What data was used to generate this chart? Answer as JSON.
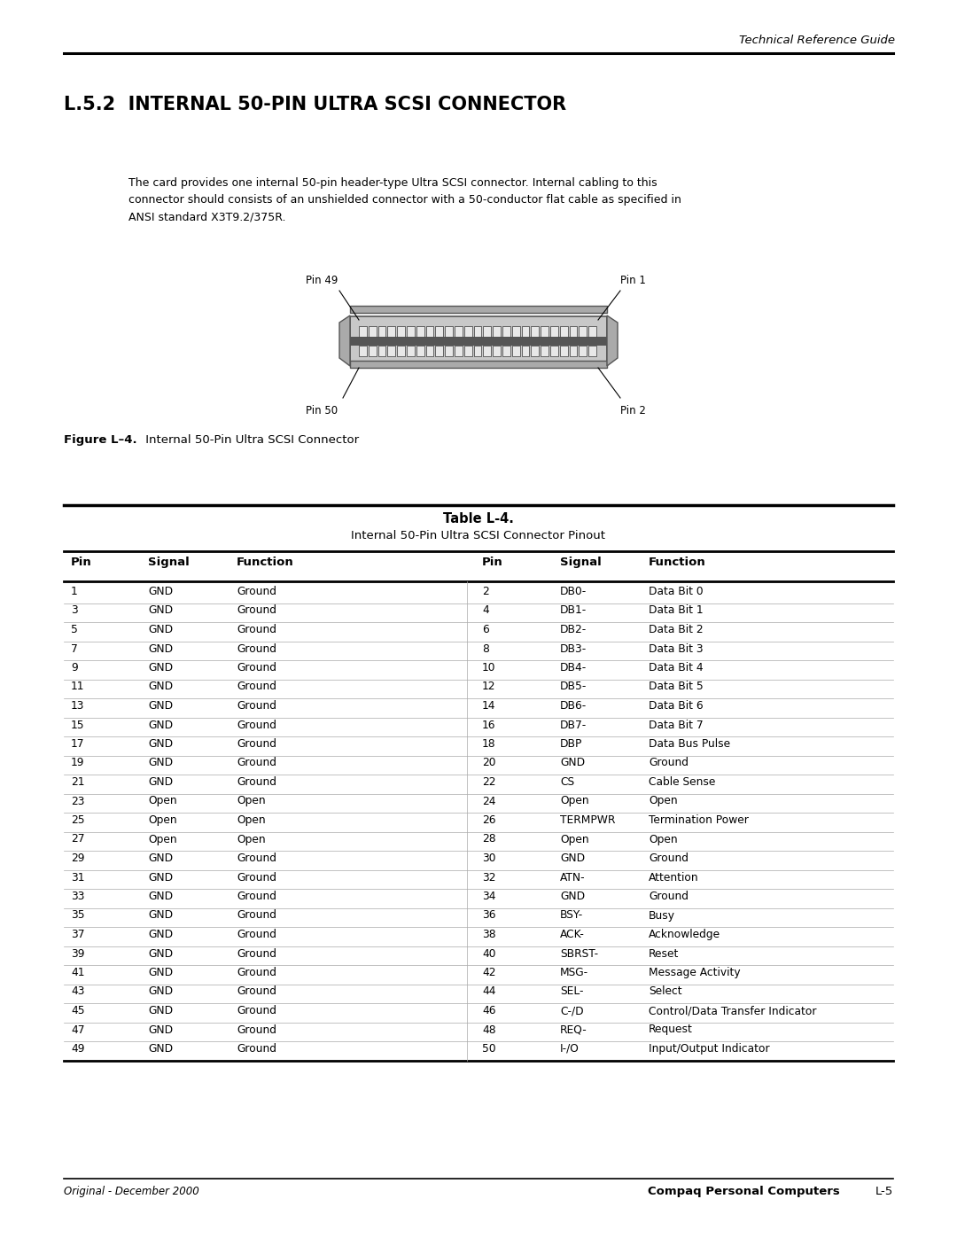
{
  "header_right": "Technical Reference Guide",
  "section_title": "L.5.2  INTERNAL 50-PIN ULTRA SCSI CONNECTOR",
  "body_text_line1": "The card provides one internal 50-pin header-type Ultra SCSI connector. Internal cabling to this",
  "body_text_line2": "connector should consists of an unshielded connector with a 50-conductor flat cable as specified in",
  "body_text_line3": "ANSI standard X3T9.2/375R.",
  "figure_caption_bold": "Figure L–4.",
  "figure_caption_normal": " Internal 50-Pin Ultra SCSI Connector",
  "table_title_bold": "Table L-4.",
  "table_title_normal": "Internal 50-Pin Ultra SCSI Connector Pinout",
  "col_headers": [
    "Pin",
    "Signal",
    "Function",
    "Pin",
    "Signal",
    "Function"
  ],
  "table_rows": [
    [
      "1",
      "GND",
      "Ground",
      "2",
      "DB0-",
      "Data Bit 0"
    ],
    [
      "3",
      "GND",
      "Ground",
      "4",
      "DB1-",
      "Data Bit 1"
    ],
    [
      "5",
      "GND",
      "Ground",
      "6",
      "DB2-",
      "Data Bit 2"
    ],
    [
      "7",
      "GND",
      "Ground",
      "8",
      "DB3-",
      "Data Bit 3"
    ],
    [
      "9",
      "GND",
      "Ground",
      "10",
      "DB4-",
      "Data Bit 4"
    ],
    [
      "11",
      "GND",
      "Ground",
      "12",
      "DB5-",
      "Data Bit 5"
    ],
    [
      "13",
      "GND",
      "Ground",
      "14",
      "DB6-",
      "Data Bit 6"
    ],
    [
      "15",
      "GND",
      "Ground",
      "16",
      "DB7-",
      "Data Bit 7"
    ],
    [
      "17",
      "GND",
      "Ground",
      "18",
      "DBP",
      "Data Bus Pulse"
    ],
    [
      "19",
      "GND",
      "Ground",
      "20",
      "GND",
      "Ground"
    ],
    [
      "21",
      "GND",
      "Ground",
      "22",
      "CS",
      "Cable Sense"
    ],
    [
      "23",
      "Open",
      "Open",
      "24",
      "Open",
      "Open"
    ],
    [
      "25",
      "Open",
      "Open",
      "26",
      "TERMPWR",
      "Termination Power"
    ],
    [
      "27",
      "Open",
      "Open",
      "28",
      "Open",
      "Open"
    ],
    [
      "29",
      "GND",
      "Ground",
      "30",
      "GND",
      "Ground"
    ],
    [
      "31",
      "GND",
      "Ground",
      "32",
      "ATN-",
      "Attention"
    ],
    [
      "33",
      "GND",
      "Ground",
      "34",
      "GND",
      "Ground"
    ],
    [
      "35",
      "GND",
      "Ground",
      "36",
      "BSY-",
      "Busy"
    ],
    [
      "37",
      "GND",
      "Ground",
      "38",
      "ACK-",
      "Acknowledge"
    ],
    [
      "39",
      "GND",
      "Ground",
      "40",
      "SBRST-",
      "Reset"
    ],
    [
      "41",
      "GND",
      "Ground",
      "42",
      "MSG-",
      "Message Activity"
    ],
    [
      "43",
      "GND",
      "Ground",
      "44",
      "SEL-",
      "Select"
    ],
    [
      "45",
      "GND",
      "Ground",
      "46",
      "C-/D",
      "Control/Data Transfer Indicator"
    ],
    [
      "47",
      "GND",
      "Ground",
      "48",
      "REQ-",
      "Request"
    ],
    [
      "49",
      "GND",
      "Ground",
      "50",
      "I-/O",
      "Input/Output Indicator"
    ]
  ],
  "footer_left_italic": "Original - December 2000",
  "footer_right_bold": "Compaq Personal Computers",
  "footer_right_page": "L-5",
  "bg_color": "#ffffff",
  "text_color": "#000000"
}
